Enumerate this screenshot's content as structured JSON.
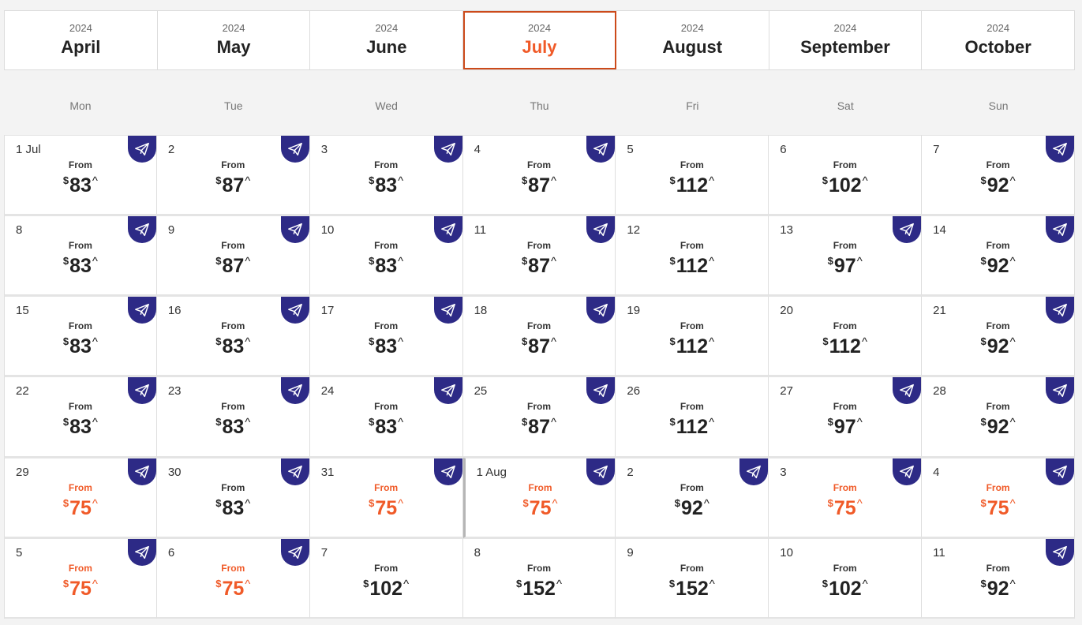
{
  "months": [
    {
      "year": "2024",
      "name": "April",
      "selected": false
    },
    {
      "year": "2024",
      "name": "May",
      "selected": false
    },
    {
      "year": "2024",
      "name": "June",
      "selected": false
    },
    {
      "year": "2024",
      "name": "July",
      "selected": true
    },
    {
      "year": "2024",
      "name": "August",
      "selected": false
    },
    {
      "year": "2024",
      "name": "September",
      "selected": false
    },
    {
      "year": "2024",
      "name": "October",
      "selected": false
    }
  ],
  "weekdays": [
    "Mon",
    "Tue",
    "Wed",
    "Thu",
    "Fri",
    "Sat",
    "Sun"
  ],
  "from_label": "From",
  "currency": "$",
  "caret": "^",
  "colors": {
    "accent": "#f05a28",
    "tag": "#2d2a86"
  },
  "icons": {
    "deal": "paper-plane-icon"
  },
  "days": [
    {
      "day": "1 Jul",
      "price": "83",
      "tag": true,
      "cheap": false
    },
    {
      "day": "2",
      "price": "87",
      "tag": true,
      "cheap": false
    },
    {
      "day": "3",
      "price": "83",
      "tag": true,
      "cheap": false
    },
    {
      "day": "4",
      "price": "87",
      "tag": true,
      "cheap": false
    },
    {
      "day": "5",
      "price": "112",
      "tag": false,
      "cheap": false
    },
    {
      "day": "6",
      "price": "102",
      "tag": false,
      "cheap": false
    },
    {
      "day": "7",
      "price": "92",
      "tag": true,
      "cheap": false
    },
    {
      "day": "8",
      "price": "83",
      "tag": true,
      "cheap": false
    },
    {
      "day": "9",
      "price": "87",
      "tag": true,
      "cheap": false
    },
    {
      "day": "10",
      "price": "83",
      "tag": true,
      "cheap": false
    },
    {
      "day": "11",
      "price": "87",
      "tag": true,
      "cheap": false
    },
    {
      "day": "12",
      "price": "112",
      "tag": false,
      "cheap": false
    },
    {
      "day": "13",
      "price": "97",
      "tag": true,
      "cheap": false
    },
    {
      "day": "14",
      "price": "92",
      "tag": true,
      "cheap": false
    },
    {
      "day": "15",
      "price": "83",
      "tag": true,
      "cheap": false
    },
    {
      "day": "16",
      "price": "83",
      "tag": true,
      "cheap": false
    },
    {
      "day": "17",
      "price": "83",
      "tag": true,
      "cheap": false
    },
    {
      "day": "18",
      "price": "87",
      "tag": true,
      "cheap": false
    },
    {
      "day": "19",
      "price": "112",
      "tag": false,
      "cheap": false
    },
    {
      "day": "20",
      "price": "112",
      "tag": false,
      "cheap": false
    },
    {
      "day": "21",
      "price": "92",
      "tag": true,
      "cheap": false
    },
    {
      "day": "22",
      "price": "83",
      "tag": true,
      "cheap": false
    },
    {
      "day": "23",
      "price": "83",
      "tag": true,
      "cheap": false
    },
    {
      "day": "24",
      "price": "83",
      "tag": true,
      "cheap": false
    },
    {
      "day": "25",
      "price": "87",
      "tag": true,
      "cheap": false
    },
    {
      "day": "26",
      "price": "112",
      "tag": false,
      "cheap": false
    },
    {
      "day": "27",
      "price": "97",
      "tag": true,
      "cheap": false
    },
    {
      "day": "28",
      "price": "92",
      "tag": true,
      "cheap": false
    },
    {
      "day": "29",
      "price": "75",
      "tag": true,
      "cheap": true
    },
    {
      "day": "30",
      "price": "83",
      "tag": true,
      "cheap": false
    },
    {
      "day": "31",
      "price": "75",
      "tag": true,
      "cheap": true
    },
    {
      "day": "1 Aug",
      "price": "75",
      "tag": true,
      "cheap": true,
      "divider": true
    },
    {
      "day": "2",
      "price": "92",
      "tag": true,
      "cheap": false
    },
    {
      "day": "3",
      "price": "75",
      "tag": true,
      "cheap": true
    },
    {
      "day": "4",
      "price": "75",
      "tag": true,
      "cheap": true
    },
    {
      "day": "5",
      "price": "75",
      "tag": true,
      "cheap": true
    },
    {
      "day": "6",
      "price": "75",
      "tag": true,
      "cheap": true
    },
    {
      "day": "7",
      "price": "102",
      "tag": false,
      "cheap": false
    },
    {
      "day": "8",
      "price": "152",
      "tag": false,
      "cheap": false
    },
    {
      "day": "9",
      "price": "152",
      "tag": false,
      "cheap": false
    },
    {
      "day": "10",
      "price": "102",
      "tag": false,
      "cheap": false
    },
    {
      "day": "11",
      "price": "92",
      "tag": true,
      "cheap": false
    }
  ]
}
